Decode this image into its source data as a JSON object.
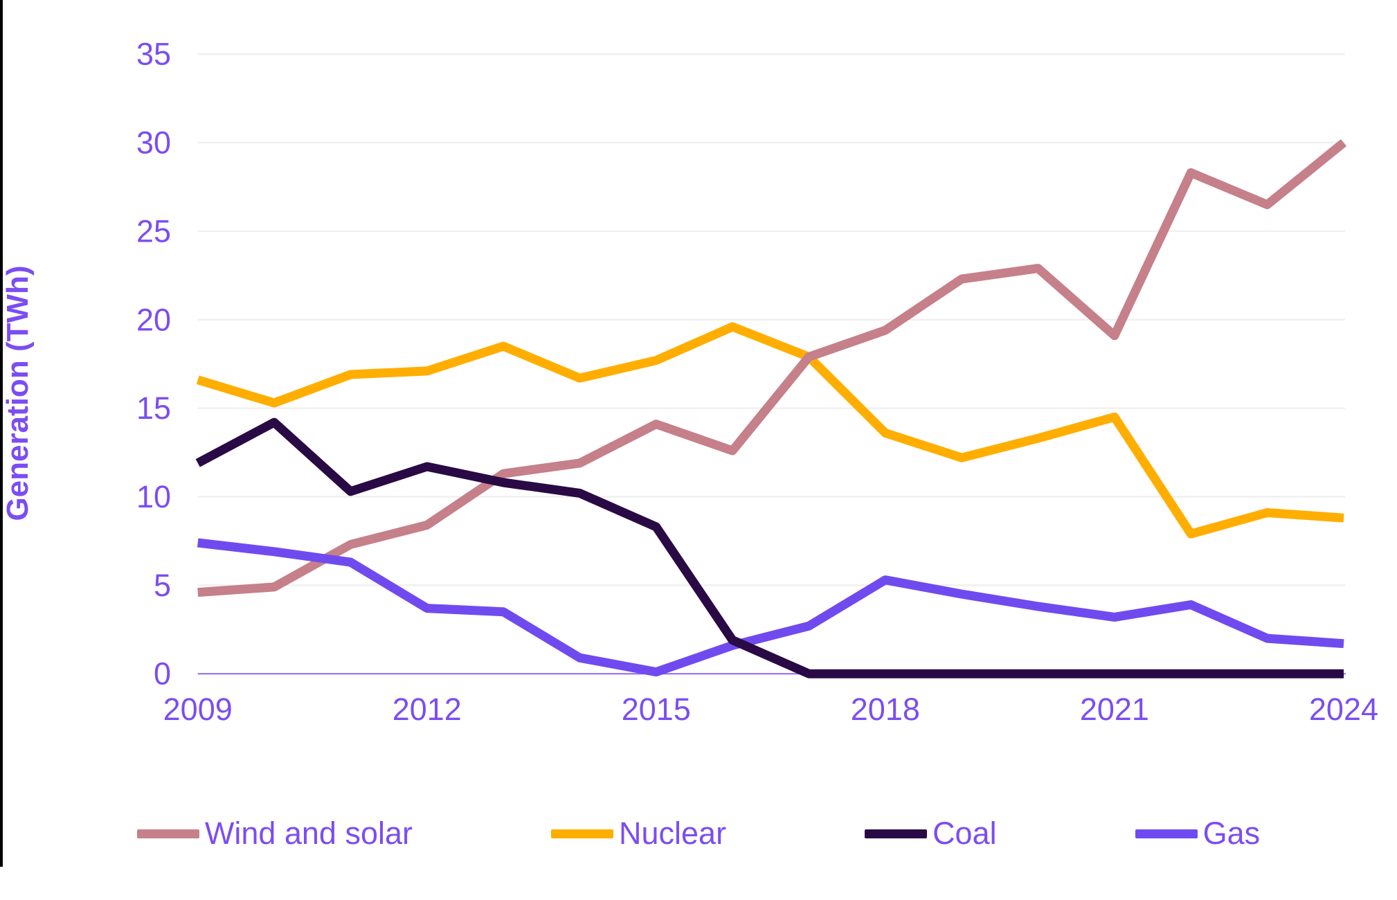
{
  "page": {
    "background": "#ffffff",
    "left_border_color": "#000000"
  },
  "y_axis": {
    "title": "Generation (TWh)",
    "tick_labels": [
      "0",
      "5",
      "10",
      "15",
      "20",
      "25",
      "30",
      "35"
    ],
    "text_color": "#7b4df2",
    "axis_line_color": "#8b68f2",
    "gridline_color": "#f1eff0"
  },
  "x_axis": {
    "tick_labels": [
      "2009",
      "2012",
      "2015",
      "2018",
      "2021",
      "2024"
    ]
  },
  "legend": {
    "items": [
      {
        "label": "Wind and solar",
        "color": "#c5808a"
      },
      {
        "label": "Nuclear",
        "color": "#ffae00"
      },
      {
        "label": "Coal",
        "color": "#2a0a45"
      },
      {
        "label": "Gas",
        "color": "#6f4bef"
      }
    ]
  },
  "chart_data": {
    "type": "line",
    "title": "",
    "xlabel": "",
    "ylabel": "Generation (TWh)",
    "x": [
      2009,
      2010,
      2011,
      2012,
      2013,
      2014,
      2015,
      2016,
      2017,
      2018,
      2019,
      2020,
      2021,
      2022,
      2023,
      2024
    ],
    "series": [
      {
        "name": "Wind and solar",
        "color": "#c5808a",
        "values": [
          4.6,
          4.9,
          7.3,
          8.4,
          11.3,
          11.9,
          14.1,
          12.6,
          17.9,
          19.4,
          22.3,
          22.9,
          19.1,
          28.3,
          26.5,
          30.0
        ]
      },
      {
        "name": "Nuclear",
        "color": "#ffae00",
        "values": [
          16.6,
          15.3,
          16.9,
          17.1,
          18.5,
          16.7,
          17.7,
          19.6,
          17.9,
          13.6,
          12.2,
          13.3,
          14.5,
          7.9,
          9.1,
          8.8
        ]
      },
      {
        "name": "Coal",
        "color": "#2a0a45",
        "values": [
          11.9,
          14.2,
          10.3,
          11.7,
          10.8,
          10.2,
          8.3,
          1.9,
          0,
          0,
          0,
          0,
          0,
          0,
          0,
          0
        ]
      },
      {
        "name": "Gas",
        "color": "#6f4bef",
        "values": [
          7.4,
          6.9,
          6.3,
          3.7,
          3.5,
          0.9,
          0.1,
          1.6,
          2.7,
          5.3,
          4.5,
          3.8,
          3.2,
          3.9,
          2.0,
          1.7
        ]
      }
    ],
    "ylim": [
      0,
      35
    ],
    "ytick_interval": 5,
    "xticks_shown": [
      2009,
      2012,
      2015,
      2018,
      2021,
      2024
    ],
    "grid": "horizontal",
    "legend_position": "bottom"
  }
}
